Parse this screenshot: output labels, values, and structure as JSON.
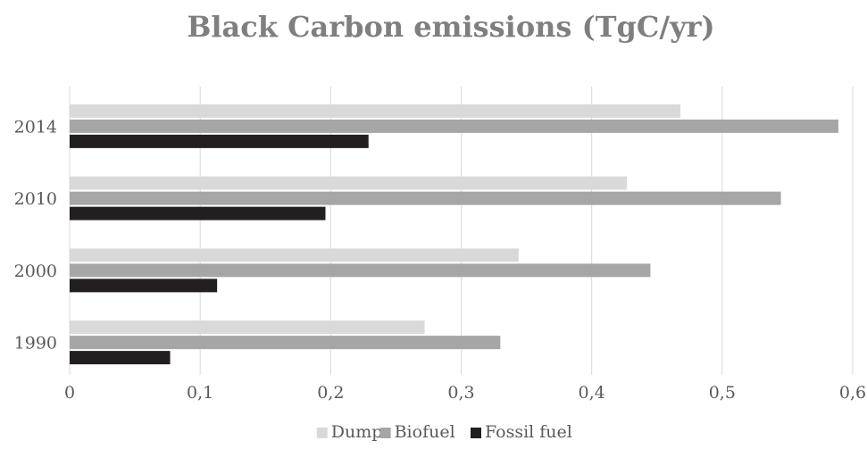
{
  "chart_data": {
    "type": "bar",
    "orientation": "horizontal",
    "title": "Black Carbon emissions (TgC/yr)",
    "xlabel": "",
    "ylabel": "",
    "categories": [
      "1990",
      "2000",
      "2010",
      "2014"
    ],
    "series": [
      {
        "name": "Dump",
        "color": "#d9d9d9",
        "values": [
          0.272,
          0.344,
          0.427,
          0.468
        ]
      },
      {
        "name": "Biofuel",
        "color": "#a6a6a6",
        "values": [
          0.33,
          0.445,
          0.545,
          0.589
        ]
      },
      {
        "name": "Fossil fuel",
        "color": "#231f20",
        "values": [
          0.077,
          0.113,
          0.196,
          0.229
        ]
      }
    ],
    "xlim": [
      0,
      0.6
    ],
    "xticks": [
      "0",
      "0,1",
      "0,2",
      "0,3",
      "0,4",
      "0,5",
      "0,6"
    ],
    "grid": "vertical",
    "legend_position": "bottom"
  }
}
